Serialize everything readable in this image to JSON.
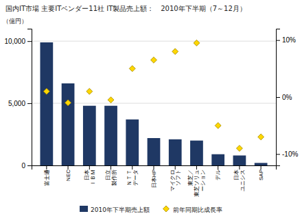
{
  "chart_data": {
    "type": "bar",
    "title": "国内IT市場 主要ITベンダー11社 IT製品売上額：　2010年下半期（7～12月）",
    "ylabel": "（億円）",
    "categories": [
      "富士通",
      "NEC",
      "日本\nＩＢＭ",
      "日立\n製作所",
      "ＮＴＴ\nデータ",
      "日本HP",
      "マイクロ\nソフト",
      "東芝／\n東芝ソリュ\nーション",
      "デル",
      "日本\nユニシス",
      "SAP"
    ],
    "series": [
      {
        "name": "2010年下半期売上額",
        "type": "bar",
        "color": "#1F3864",
        "values": [
          9900,
          6600,
          4800,
          4800,
          3700,
          2200,
          2100,
          2000,
          900,
          800,
          200
        ]
      },
      {
        "name": "前年同期比成長率",
        "type": "scatter",
        "axis": "y2",
        "marker": "diamond",
        "color": "#FFD700",
        "values": [
          1.0,
          -1.0,
          1.0,
          -0.5,
          5.0,
          6.5,
          8.0,
          9.5,
          -5.0,
          -9.0,
          -7.0
        ]
      }
    ],
    "ylim": [
      0,
      11000
    ],
    "yticks": [
      0,
      {
        "value": 5000,
        "label": "5,000"
      },
      {
        "value": 10000,
        "label": "10,000"
      }
    ],
    "y2lim": [
      -12,
      12
    ],
    "y2ticks": [
      {
        "value": -10,
        "label": "-10%"
      },
      {
        "value": 0,
        "label": "0%"
      },
      {
        "value": 10,
        "label": "10%"
      }
    ],
    "grid": true,
    "legend": "bottom"
  }
}
